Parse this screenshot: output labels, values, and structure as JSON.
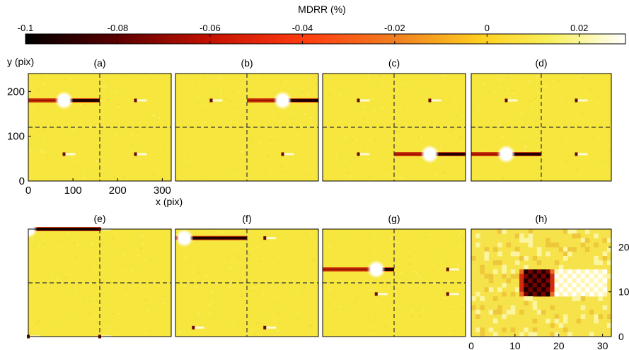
{
  "colorbar": {
    "title": "MDRR (%)",
    "ticks": [
      "-0.1",
      "-0.08",
      "-0.06",
      "-0.04",
      "-0.02",
      "0",
      "0.02"
    ],
    "tick_values": [
      -0.1,
      -0.08,
      -0.06,
      -0.04,
      -0.02,
      0,
      0.02
    ],
    "range": [
      -0.1,
      0.03
    ],
    "colors": [
      "#000000",
      "#5a0000",
      "#c01000",
      "#ff3a10",
      "#f08020",
      "#ffd020",
      "#f8f060",
      "#ffffff"
    ]
  },
  "axes": {
    "xlabel": "x (pix)",
    "ylabel": "y (pix)",
    "x_ticks": [
      "0",
      "100",
      "200",
      "300"
    ],
    "y_ticks": [
      "0",
      "100",
      "200"
    ],
    "xlim": [
      0,
      320
    ],
    "ylim": [
      0,
      240
    ],
    "divider_x": 160,
    "divider_y": 120
  },
  "zoom_axes": {
    "x_ticks": [
      "0",
      "10",
      "20",
      "30"
    ],
    "y_ticks": [
      "0",
      "10",
      "20"
    ],
    "xlim": [
      0,
      32
    ],
    "ylim": [
      0,
      24
    ]
  },
  "panels": [
    {
      "label": "(a)"
    },
    {
      "label": "(b)"
    },
    {
      "label": "(c)"
    },
    {
      "label": "(d)"
    },
    {
      "label": "(e)"
    },
    {
      "label": "(f)"
    },
    {
      "label": "(g)"
    },
    {
      "label": "(h)"
    }
  ],
  "chart_data": {
    "type": "heatmap",
    "colorbar_range": [
      -0.1,
      0.03
    ],
    "panels": [
      {
        "label": "(a)",
        "streak": {
          "x": [
            0,
            160
          ],
          "y": 180,
          "hot_x": 80
        },
        "points": [
          {
            "x": 240,
            "y": 180
          },
          {
            "x": 80,
            "y": 60
          },
          {
            "x": 240,
            "y": 60
          }
        ]
      },
      {
        "label": "(b)",
        "streak": {
          "x": [
            160,
            320
          ],
          "y": 180,
          "hot_x": 240
        },
        "points": [
          {
            "x": 80,
            "y": 180
          },
          {
            "x": 240,
            "y": 60
          }
        ]
      },
      {
        "label": "(c)",
        "streak": {
          "x": [
            160,
            320
          ],
          "y": 60,
          "hot_x": 240
        },
        "points": [
          {
            "x": 80,
            "y": 180
          },
          {
            "x": 240,
            "y": 180
          },
          {
            "x": 80,
            "y": 60
          }
        ]
      },
      {
        "label": "(d)",
        "streak": {
          "x": [
            0,
            160
          ],
          "y": 60,
          "hot_x": 80
        },
        "points": [
          {
            "x": 80,
            "y": 180
          },
          {
            "x": 240,
            "y": 180
          },
          {
            "x": 240,
            "y": 60
          }
        ]
      },
      {
        "label": "(e)",
        "streak": {
          "x": [
            0,
            160
          ],
          "y": 240,
          "hot_x": 0
        },
        "points": [
          {
            "x": 0,
            "y": 0
          },
          {
            "x": 160,
            "y": 0
          },
          {
            "x": 160,
            "y": 240
          }
        ]
      },
      {
        "label": "(f)",
        "streak": {
          "x": [
            0,
            160
          ],
          "y": 220,
          "hot_x": 20
        },
        "points": [
          {
            "x": 200,
            "y": 220
          },
          {
            "x": 40,
            "y": 20
          },
          {
            "x": 200,
            "y": 20
          }
        ]
      },
      {
        "label": "(g)",
        "streak": {
          "x": [
            0,
            160
          ],
          "y": 150,
          "hot_x": 120
        },
        "points": [
          {
            "x": 280,
            "y": 150
          },
          {
            "x": 120,
            "y": 95
          },
          {
            "x": 280,
            "y": 95
          }
        ]
      },
      {
        "label": "(h)",
        "zoom": true
      }
    ]
  }
}
